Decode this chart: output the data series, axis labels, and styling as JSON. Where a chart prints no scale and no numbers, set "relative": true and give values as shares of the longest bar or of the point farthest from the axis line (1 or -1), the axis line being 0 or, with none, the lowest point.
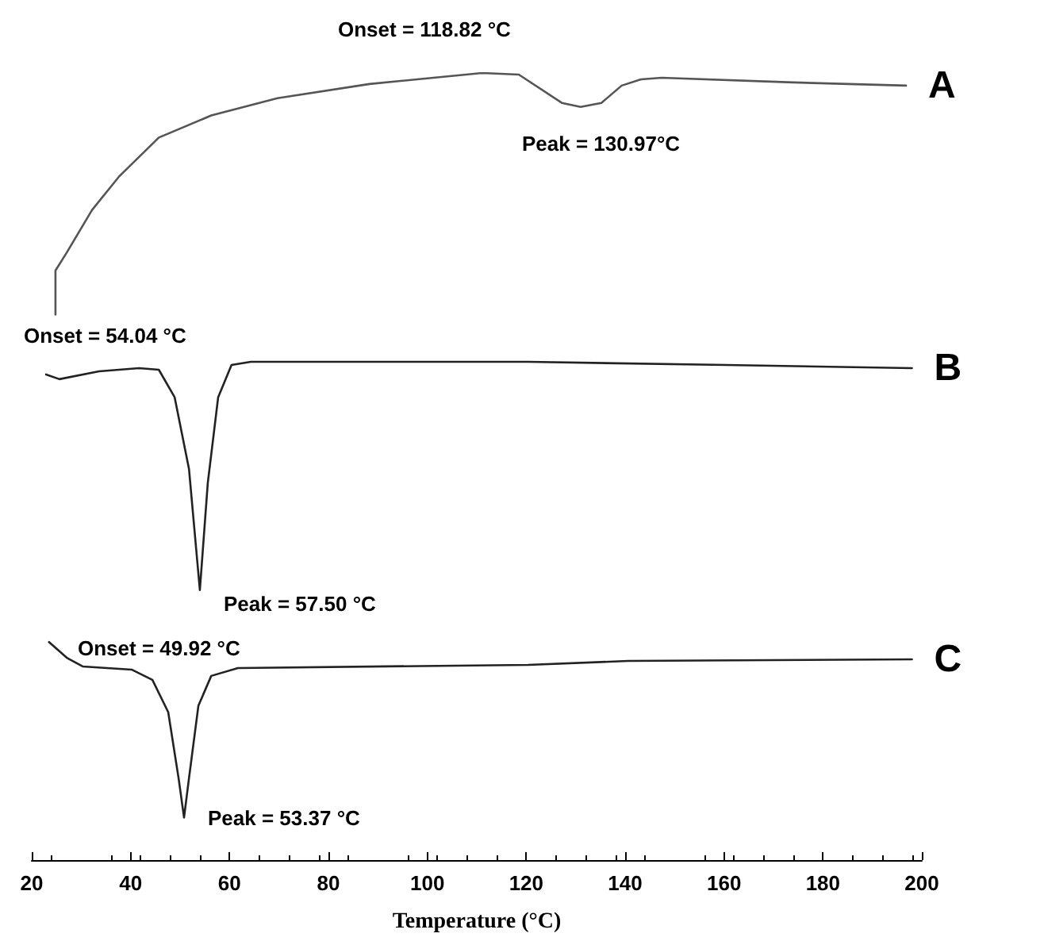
{
  "chart_data": {
    "type": "line",
    "relative": true,
    "xlabel": "Temperature (°C)",
    "xlim": [
      20,
      200
    ],
    "xticks": [
      20,
      40,
      60,
      80,
      100,
      120,
      140,
      160,
      180,
      200
    ],
    "grid": false,
    "legend": false,
    "marker": "none",
    "line_style": "solid",
    "series": [
      {
        "name": "A",
        "color": "#555555",
        "x": [
          24.8,
          24.8,
          27.1,
          32.2,
          37.6,
          45.7,
          56.3,
          69.7,
          88.3,
          111.1,
          118.5,
          127.2,
          131.0,
          135.2,
          139.3,
          143.2,
          147.4,
          174.0,
          196.8
        ],
        "values": [
          0.693,
          0.749,
          0.772,
          0.826,
          0.868,
          0.918,
          0.946,
          0.968,
          0.986,
          1.0,
          0.998,
          0.962,
          0.957,
          0.962,
          0.984,
          0.992,
          0.994,
          0.988,
          0.984
        ]
      },
      {
        "name": "B",
        "color": "#222222",
        "x": [
          22.9,
          25.6,
          33.6,
          41.7,
          45.7,
          48.9,
          51.8,
          54.0,
          55.6,
          57.7,
          60.4,
          64.3,
          120.4,
          160.5,
          198
        ],
        "values": [
          0.617,
          0.611,
          0.621,
          0.625,
          0.623,
          0.588,
          0.497,
          0.343,
          0.479,
          0.588,
          0.629,
          0.633,
          0.633,
          0.629,
          0.625
        ]
      },
      {
        "name": "C",
        "color": "#222222",
        "x": [
          23.5,
          27.1,
          30.3,
          40.2,
          44.4,
          47.6,
          49.7,
          50.8,
          51.8,
          53.7,
          56.3,
          61.7,
          120.4,
          140.6,
          198
        ],
        "values": [
          0.277,
          0.257,
          0.246,
          0.242,
          0.229,
          0.188,
          0.104,
          0.054,
          0.104,
          0.196,
          0.234,
          0.244,
          0.248,
          0.253,
          0.255
        ]
      }
    ],
    "annotations": [
      "Onset = 118.82 °C",
      "Peak = 130.97°C",
      "Onset = 54.04 °C",
      "Peak = 57.50 °C",
      "Onset = 49.92 °C",
      "Peak = 53.37 °C"
    ]
  }
}
